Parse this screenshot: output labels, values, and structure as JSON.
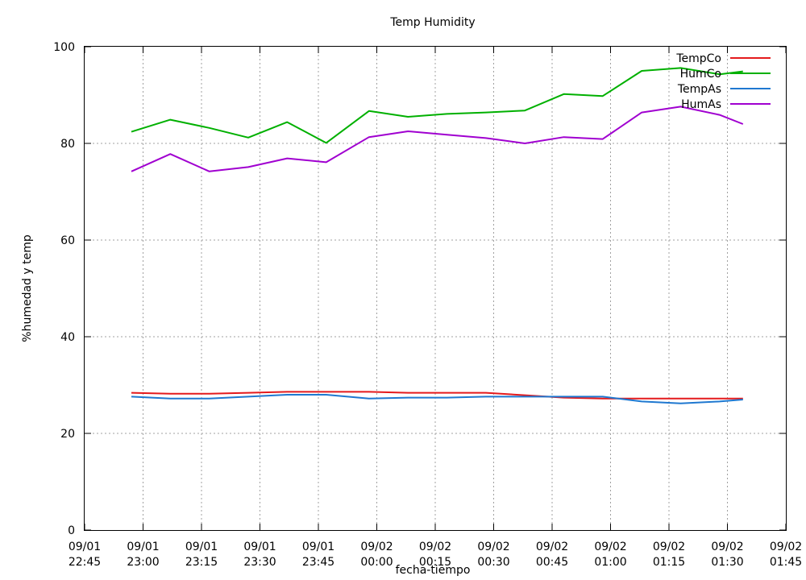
{
  "chart_data": {
    "type": "line",
    "title": "Temp Humidity",
    "xlabel": "fecha-tiempo",
    "ylabel": "%humedad y temp",
    "ylim": [
      0,
      100
    ],
    "yticks": [
      0,
      20,
      40,
      60,
      80,
      100
    ],
    "xlim": [
      "09/01 22:45",
      "09/02 01:45"
    ],
    "xticks": [
      {
        "date": "09/01",
        "time": "22:45"
      },
      {
        "date": "09/01",
        "time": "23:00"
      },
      {
        "date": "09/01",
        "time": "23:15"
      },
      {
        "date": "09/01",
        "time": "23:30"
      },
      {
        "date": "09/01",
        "time": "23:45"
      },
      {
        "date": "09/02",
        "time": "00:00"
      },
      {
        "date": "09/02",
        "time": "00:15"
      },
      {
        "date": "09/02",
        "time": "00:30"
      },
      {
        "date": "09/02",
        "time": "00:45"
      },
      {
        "date": "09/02",
        "time": "01:00"
      },
      {
        "date": "09/02",
        "time": "01:15"
      },
      {
        "date": "09/02",
        "time": "01:30"
      },
      {
        "date": "09/02",
        "time": "01:45"
      }
    ],
    "grid": true,
    "legend_position": "top-right",
    "series": [
      {
        "name": "TempCo",
        "color": "#e41a1c",
        "points": [
          {
            "x": "09/01 22:57",
            "y": 28.4
          },
          {
            "x": "09/01 23:07",
            "y": 28.2
          },
          {
            "x": "09/01 23:17",
            "y": 28.2
          },
          {
            "x": "09/01 23:27",
            "y": 28.4
          },
          {
            "x": "09/01 23:37",
            "y": 28.6
          },
          {
            "x": "09/01 23:47",
            "y": 28.6
          },
          {
            "x": "09/01 23:58",
            "y": 28.6
          },
          {
            "x": "09/02 00:08",
            "y": 28.4
          },
          {
            "x": "09/02 00:18",
            "y": 28.4
          },
          {
            "x": "09/02 00:28",
            "y": 28.4
          },
          {
            "x": "09/02 00:38",
            "y": 27.9
          },
          {
            "x": "09/02 00:48",
            "y": 27.4
          },
          {
            "x": "09/02 00:58",
            "y": 27.2
          },
          {
            "x": "09/02 01:08",
            "y": 27.2
          },
          {
            "x": "09/02 01:18",
            "y": 27.2
          },
          {
            "x": "09/02 01:28",
            "y": 27.2
          },
          {
            "x": "09/02 01:34",
            "y": 27.2
          }
        ]
      },
      {
        "name": "HumCo",
        "color": "#00b000",
        "points": [
          {
            "x": "09/01 22:57",
            "y": 82.4
          },
          {
            "x": "09/01 23:07",
            "y": 84.9
          },
          {
            "x": "09/01 23:17",
            "y": 83.2
          },
          {
            "x": "09/01 23:27",
            "y": 81.2
          },
          {
            "x": "09/01 23:37",
            "y": 84.4
          },
          {
            "x": "09/01 23:47",
            "y": 80.1
          },
          {
            "x": "09/01 23:58",
            "y": 86.7
          },
          {
            "x": "09/02 00:08",
            "y": 85.5
          },
          {
            "x": "09/02 00:18",
            "y": 86.1
          },
          {
            "x": "09/02 00:28",
            "y": 86.4
          },
          {
            "x": "09/02 00:38",
            "y": 86.8
          },
          {
            "x": "09/02 00:48",
            "y": 90.2
          },
          {
            "x": "09/02 00:58",
            "y": 89.8
          },
          {
            "x": "09/02 01:08",
            "y": 95.0
          },
          {
            "x": "09/02 01:18",
            "y": 95.6
          },
          {
            "x": "09/02 01:28",
            "y": 94.3
          },
          {
            "x": "09/02 01:34",
            "y": 94.9
          }
        ]
      },
      {
        "name": "TempAs",
        "color": "#1f78d0",
        "points": [
          {
            "x": "09/01 22:57",
            "y": 27.6
          },
          {
            "x": "09/01 23:07",
            "y": 27.2
          },
          {
            "x": "09/01 23:17",
            "y": 27.2
          },
          {
            "x": "09/01 23:27",
            "y": 27.6
          },
          {
            "x": "09/01 23:37",
            "y": 28.0
          },
          {
            "x": "09/01 23:47",
            "y": 28.0
          },
          {
            "x": "09/01 23:58",
            "y": 27.2
          },
          {
            "x": "09/02 00:08",
            "y": 27.4
          },
          {
            "x": "09/02 00:18",
            "y": 27.4
          },
          {
            "x": "09/02 00:28",
            "y": 27.6
          },
          {
            "x": "09/02 00:38",
            "y": 27.6
          },
          {
            "x": "09/02 00:48",
            "y": 27.6
          },
          {
            "x": "09/02 00:58",
            "y": 27.6
          },
          {
            "x": "09/02 01:08",
            "y": 26.6
          },
          {
            "x": "09/02 01:18",
            "y": 26.2
          },
          {
            "x": "09/02 01:28",
            "y": 26.6
          },
          {
            "x": "09/02 01:34",
            "y": 27.0
          }
        ]
      },
      {
        "name": "HumAs",
        "color": "#a000d0",
        "points": [
          {
            "x": "09/01 22:57",
            "y": 74.2
          },
          {
            "x": "09/01 23:07",
            "y": 77.8
          },
          {
            "x": "09/01 23:17",
            "y": 74.2
          },
          {
            "x": "09/01 23:27",
            "y": 75.1
          },
          {
            "x": "09/01 23:37",
            "y": 76.9
          },
          {
            "x": "09/01 23:47",
            "y": 76.1
          },
          {
            "x": "09/01 23:58",
            "y": 81.3
          },
          {
            "x": "09/02 00:08",
            "y": 82.5
          },
          {
            "x": "09/02 00:18",
            "y": 81.8
          },
          {
            "x": "09/02 00:28",
            "y": 81.1
          },
          {
            "x": "09/02 00:38",
            "y": 80.0
          },
          {
            "x": "09/02 00:48",
            "y": 81.3
          },
          {
            "x": "09/02 00:58",
            "y": 80.9
          },
          {
            "x": "09/02 01:08",
            "y": 86.4
          },
          {
            "x": "09/02 01:18",
            "y": 87.6
          },
          {
            "x": "09/02 01:28",
            "y": 85.9
          },
          {
            "x": "09/02 01:34",
            "y": 84.0
          }
        ]
      }
    ]
  }
}
